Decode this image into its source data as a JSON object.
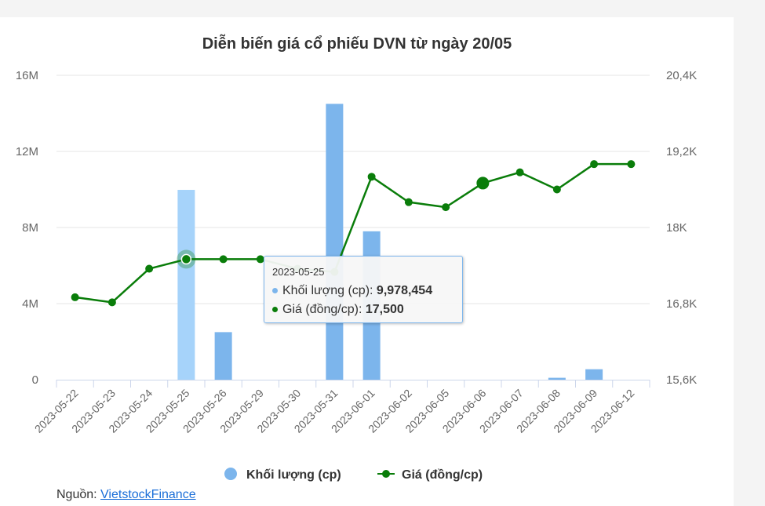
{
  "chart_data": {
    "type": "bar+line",
    "title": "Diễn biến giá cổ phiếu DVN từ ngày 20/05",
    "categories": [
      "2023-05-22",
      "2023-05-23",
      "2023-05-24",
      "2023-05-25",
      "2023-05-26",
      "2023-05-29",
      "2023-05-30",
      "2023-05-31",
      "2023-06-01",
      "2023-06-02",
      "2023-06-05",
      "2023-06-06",
      "2023-06-07",
      "2023-06-08",
      "2023-06-09",
      "2023-06-12"
    ],
    "series": [
      {
        "name": "Khối lượng (cp)",
        "type": "bar",
        "axis": "left",
        "color": "#7cb5ec",
        "values": [
          0,
          0,
          0,
          9978454,
          2500000,
          0,
          0,
          14500000,
          7800000,
          0,
          0,
          0,
          0,
          100000,
          550000,
          0
        ]
      },
      {
        "name": "Giá (đồng/cp)",
        "type": "line",
        "axis": "right",
        "color": "#0a7d0a",
        "values": [
          16900,
          16820,
          17350,
          17500,
          17500,
          17500,
          17350,
          17300,
          18800,
          18400,
          18320,
          18700,
          18870,
          18600,
          19000,
          19000
        ]
      }
    ],
    "y_left": {
      "ticks": [
        "0",
        "4M",
        "8M",
        "12M",
        "16M"
      ],
      "ylim": [
        0,
        16000000
      ]
    },
    "y_right": {
      "ticks": [
        "15,6K",
        "16,8K",
        "18K",
        "19,2K",
        "20,4K"
      ],
      "ylim": [
        15600,
        20400
      ]
    },
    "grid": true,
    "legend": "bottom-center",
    "highlighted_category": "2023-05-25"
  },
  "tooltip": {
    "date": "2023-05-25",
    "vol_label": "Khối lượng (cp): ",
    "vol_value": "9,978,454",
    "price_label": "Giá (đồng/cp): ",
    "price_value": "17,500"
  },
  "source": {
    "prefix": "Nguồn: ",
    "link": "VietstockFinance"
  },
  "colors": {
    "bar": "#7cb5ec",
    "bar_highlight": "#a6d3fa",
    "line": "#0a7d0a",
    "grid": "#e6e6e6"
  }
}
